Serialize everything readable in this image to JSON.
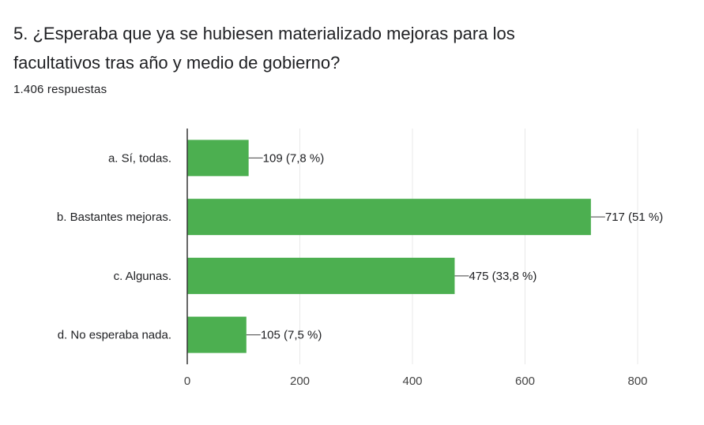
{
  "question": {
    "title": "5. ¿Esperaba que ya se hubiesen materializado mejoras para los facultativos tras año y medio de gobierno?",
    "response_count": "1.406 respuestas"
  },
  "colors": {
    "bar": "#4caf50",
    "grid": "#e8e8e8",
    "axis": "#333333",
    "leader": "#666666"
  },
  "chart_data": {
    "type": "bar",
    "orientation": "horizontal",
    "categories": [
      "a. Sí, todas.",
      "b. Bastantes mejoras.",
      "c. Algunas.",
      "d. No esperaba nada."
    ],
    "values": [
      109,
      717,
      475,
      105
    ],
    "value_labels": [
      "109 (7,8 %)",
      "717 (51 %)",
      "475 (33,8 %)",
      "105 (7,5 %)"
    ],
    "xlim": [
      0,
      800
    ],
    "xticks": [
      0,
      200,
      400,
      600,
      800
    ],
    "xtick_labels": [
      "0",
      "200",
      "400",
      "600",
      "800"
    ],
    "grid": true,
    "legend": "none"
  }
}
